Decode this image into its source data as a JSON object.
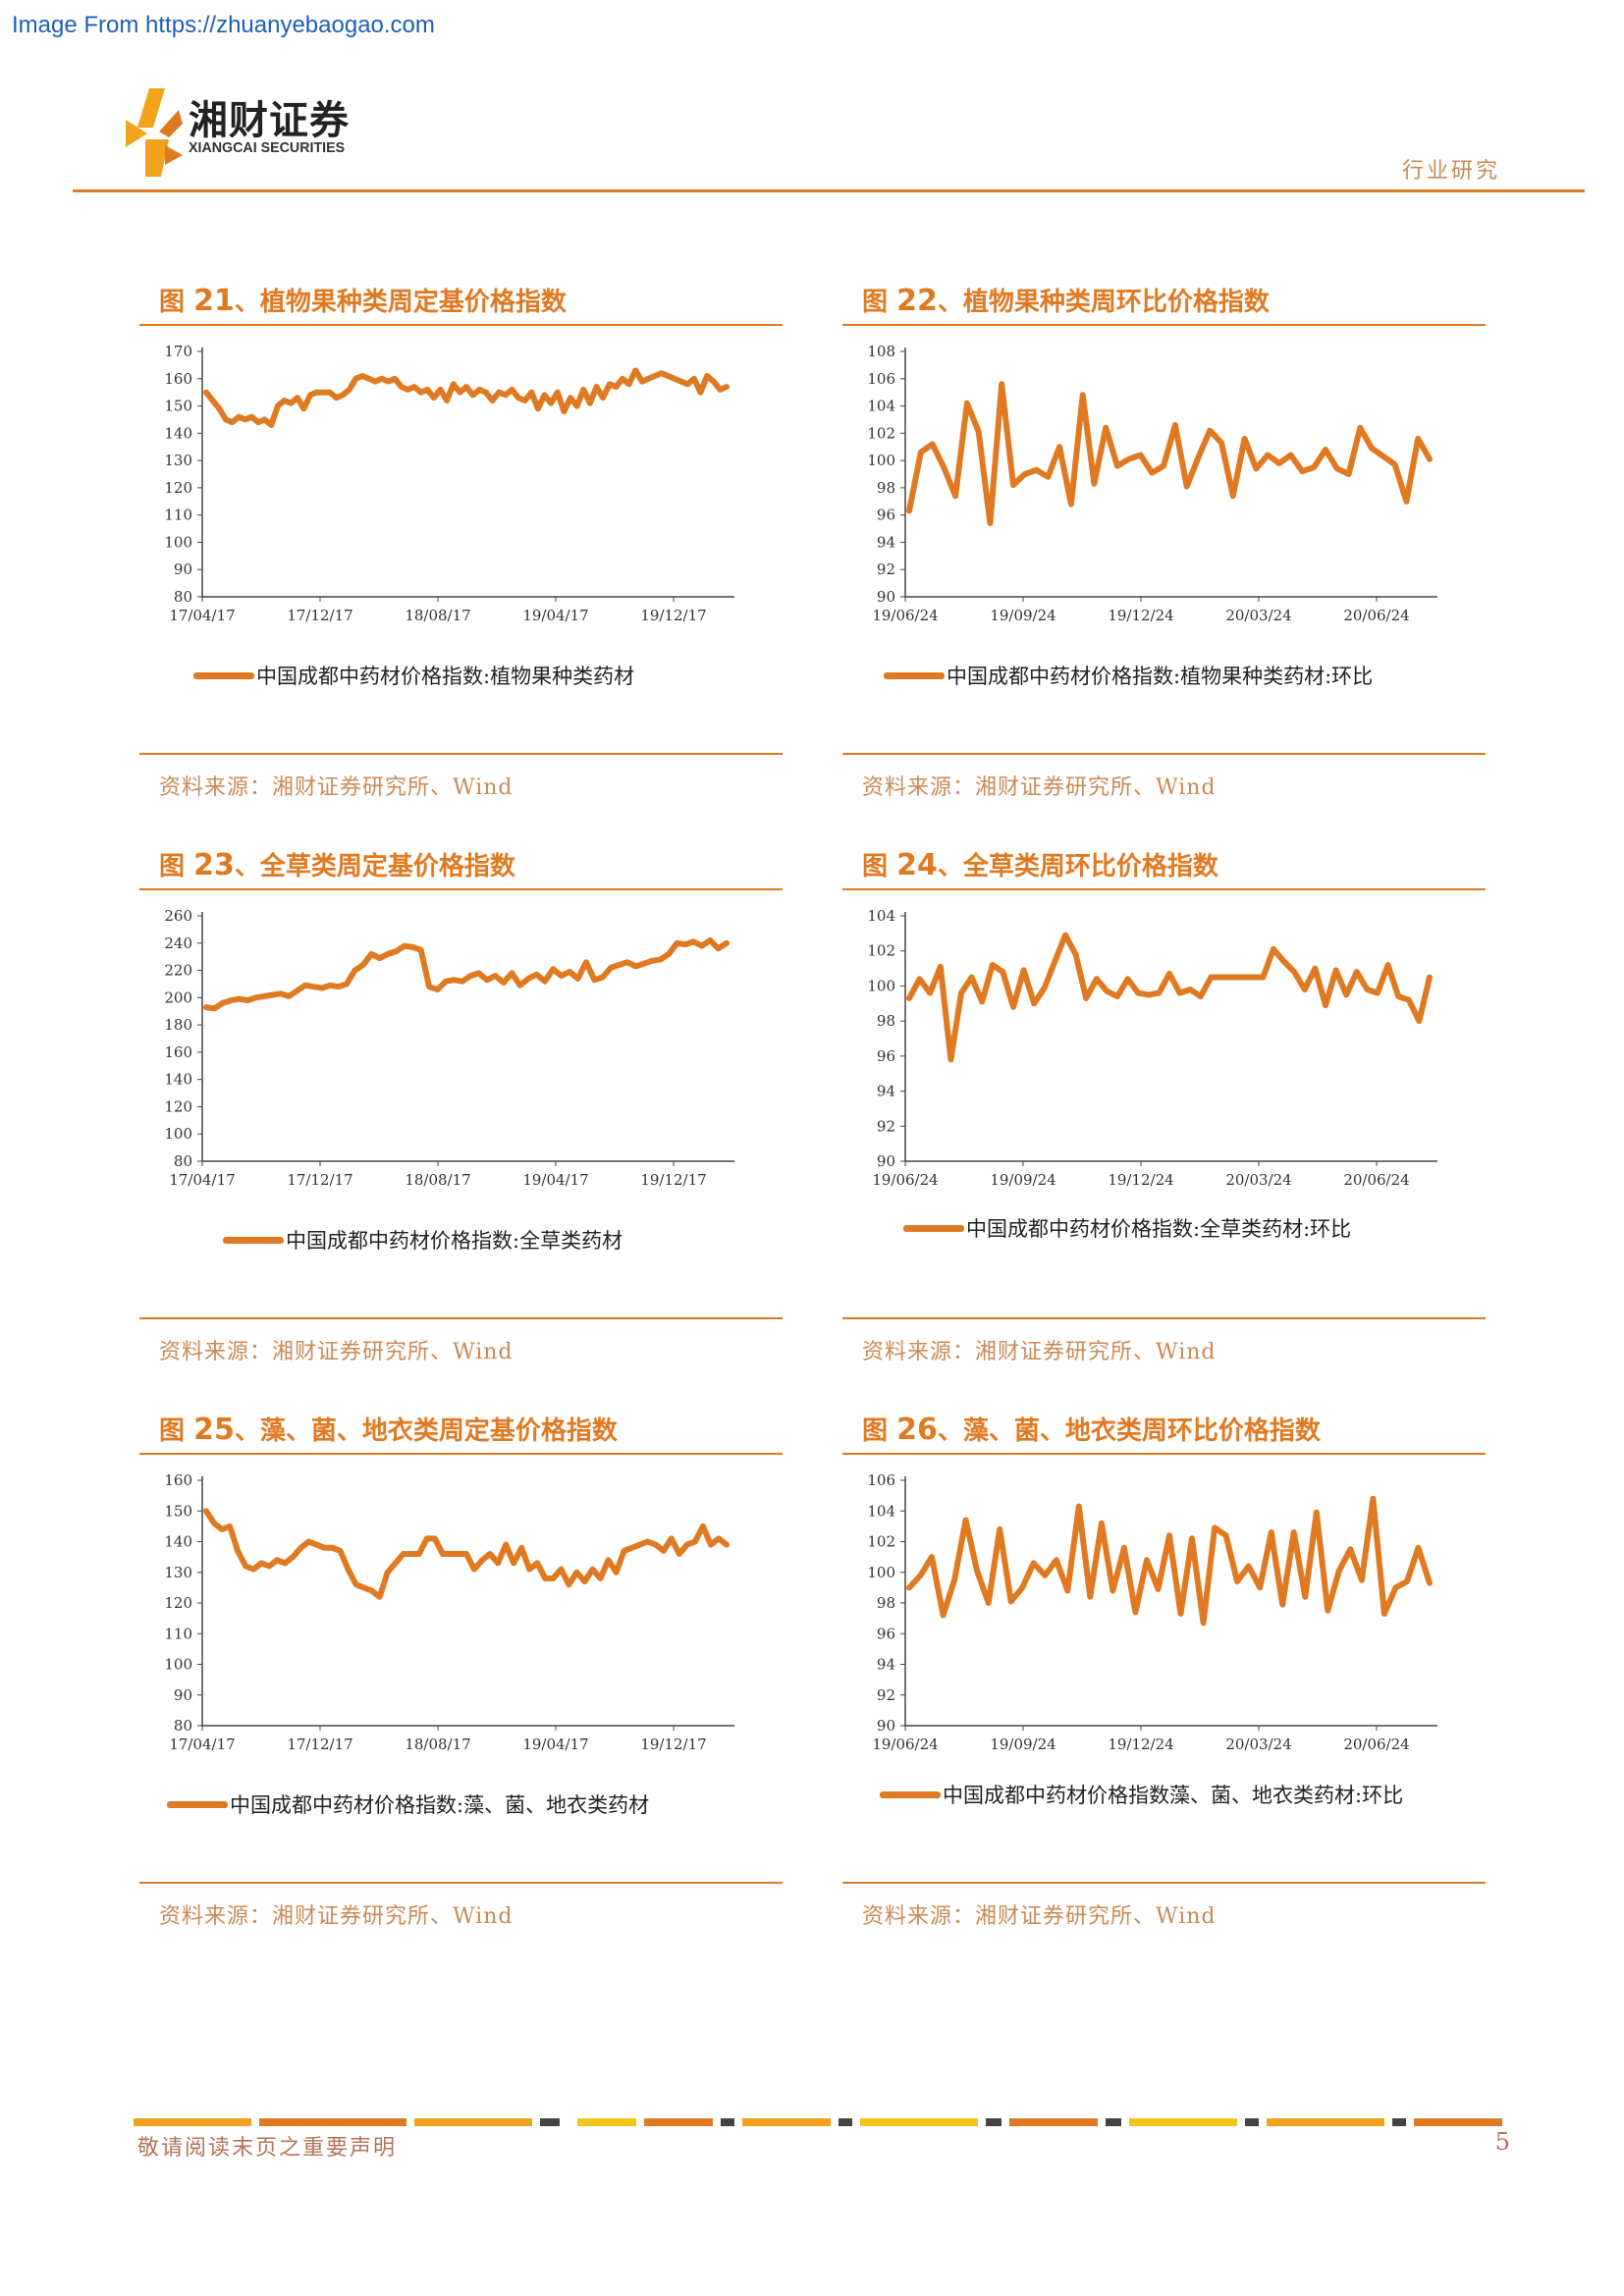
{
  "watermark": "Image From https://zhuanyebaogao.com",
  "header": {
    "brand_cn": "湘财证券",
    "brand_en": "XIANGCAI SECURITIES",
    "section": "行业研究"
  },
  "colors": {
    "accent": "#e07a22",
    "source_text": "#c98a55",
    "footer_text": "#b5735a",
    "watermark": "#1f5fb8"
  },
  "figures": [
    {
      "prefix": "图",
      "num": "21",
      "title": "、植物果种类周定基价格指数",
      "legend": "中国成都中药材价格指数:植物果种类药材",
      "source": "资料来源：湘财证券研究所、Wind"
    },
    {
      "prefix": "图",
      "num": "22",
      "title": "、植物果种类周环比价格指数",
      "legend": "中国成都中药材价格指数:植物果种类药材:环比",
      "source": "资料来源：湘财证券研究所、Wind"
    },
    {
      "prefix": "图",
      "num": "23",
      "title": "、全草类周定基价格指数",
      "legend": "中国成都中药材价格指数:全草类药材",
      "source": "资料来源：湘财证券研究所、Wind"
    },
    {
      "prefix": "图",
      "num": "24",
      "title": "、全草类周环比价格指数",
      "legend": "中国成都中药材价格指数:全草类药材:环比",
      "source": "资料来源：湘财证券研究所、Wind"
    },
    {
      "prefix": "图",
      "num": "25",
      "title": "、藻、菌、地衣类周定基价格指数",
      "legend": "中国成都中药材价格指数:藻、菌、地衣类药材",
      "source": "资料来源：湘财证券研究所、Wind"
    },
    {
      "prefix": "图",
      "num": "26",
      "title": "、藻、菌、地衣类周环比价格指数",
      "legend": "中国成都中药材价格指数藻、菌、地衣类药材:环比",
      "source": "资料来源：湘财证券研究所、Wind"
    }
  ],
  "chart_data": [
    {
      "type": "line",
      "xticks": [
        "17/04/17",
        "17/12/17",
        "18/08/17",
        "19/04/17",
        "19/12/17"
      ],
      "yticks": [
        80,
        90,
        100,
        110,
        120,
        130,
        140,
        150,
        160,
        170
      ],
      "ylim": [
        80,
        170
      ],
      "series": [
        {
          "name": "中国成都中药材价格指数:植物果种类药材",
          "values": [
            155,
            152,
            149,
            145,
            144,
            146,
            145,
            146,
            144,
            145,
            143,
            150,
            152,
            151,
            153,
            149,
            154,
            155,
            155,
            155,
            153,
            154,
            156,
            160,
            161,
            160,
            159,
            160,
            159,
            160,
            157,
            156,
            157,
            155,
            156,
            153,
            156,
            152,
            158,
            155,
            157,
            154,
            156,
            155,
            152,
            155,
            154,
            156,
            153,
            152,
            155,
            149,
            154,
            151,
            155,
            148,
            153,
            150,
            156,
            151,
            157,
            153,
            158,
            157,
            160,
            158,
            163,
            159,
            160,
            161,
            162,
            161,
            160,
            159,
            158,
            160,
            155,
            161,
            159,
            156,
            157
          ]
        }
      ]
    },
    {
      "type": "line",
      "xticks": [
        "19/06/24",
        "19/09/24",
        "19/12/24",
        "20/03/24",
        "20/06/24"
      ],
      "yticks": [
        90,
        92,
        94,
        96,
        98,
        100,
        102,
        104,
        106,
        108
      ],
      "ylim": [
        90,
        108
      ],
      "series": [
        {
          "name": "中国成都中药材价格指数:植物果种类药材:环比",
          "values": [
            96.3,
            100.6,
            101.2,
            99.5,
            97.4,
            104.2,
            102.1,
            95.4,
            105.6,
            98.2,
            99.0,
            99.3,
            98.8,
            101.0,
            96.8,
            104.8,
            98.3,
            102.4,
            99.6,
            100.1,
            100.4,
            99.1,
            99.6,
            102.6,
            98.1,
            100.2,
            102.2,
            101.3,
            97.4,
            101.6,
            99.4,
            100.4,
            99.8,
            100.4,
            99.2,
            99.5,
            100.8,
            99.4,
            99.0,
            102.4,
            100.9,
            100.3,
            99.7,
            97.0,
            101.6,
            100.1
          ]
        }
      ]
    },
    {
      "type": "line",
      "xticks": [
        "17/04/17",
        "17/12/17",
        "18/08/17",
        "19/04/17",
        "19/12/17"
      ],
      "yticks": [
        80,
        100,
        120,
        140,
        160,
        180,
        200,
        220,
        240,
        260
      ],
      "ylim": [
        80,
        260
      ],
      "series": [
        {
          "name": "中国成都中药材价格指数:全草类药材",
          "values": [
            193,
            192,
            196,
            198,
            199,
            198,
            200,
            201,
            202,
            203,
            201,
            205,
            209,
            208,
            207,
            209,
            208,
            210,
            220,
            224,
            232,
            229,
            232,
            234,
            238,
            237,
            235,
            208,
            206,
            212,
            213,
            212,
            216,
            218,
            213,
            216,
            211,
            218,
            209,
            214,
            217,
            212,
            221,
            216,
            219,
            214,
            226,
            213,
            215,
            222,
            224,
            226,
            223,
            225,
            227,
            228,
            232,
            240,
            239,
            241,
            238,
            242,
            236,
            240
          ]
        }
      ]
    },
    {
      "type": "line",
      "xticks": [
        "19/06/24",
        "19/09/24",
        "19/12/24",
        "20/03/24",
        "20/06/24"
      ],
      "yticks": [
        90,
        92,
        94,
        96,
        98,
        100,
        102,
        104
      ],
      "ylim": [
        90,
        104
      ],
      "series": [
        {
          "name": "中国成都中药材价格指数:全草类药材:环比",
          "values": [
            99.3,
            100.4,
            99.6,
            101.1,
            95.8,
            99.6,
            100.5,
            99.1,
            101.2,
            100.8,
            98.8,
            100.9,
            99.0,
            99.9,
            101.4,
            102.9,
            101.8,
            99.3,
            100.4,
            99.7,
            99.4,
            100.4,
            99.6,
            99.5,
            99.6,
            100.7,
            99.6,
            99.8,
            99.4,
            100.5,
            100.5,
            100.5,
            100.5,
            100.5,
            100.5,
            102.1,
            101.4,
            100.8,
            99.8,
            101.0,
            98.9,
            100.9,
            99.5,
            100.8,
            99.8,
            99.6,
            101.2,
            99.4,
            99.2,
            98.0,
            100.5
          ]
        }
      ]
    },
    {
      "type": "line",
      "xticks": [
        "17/04/17",
        "17/12/17",
        "18/08/17",
        "19/04/17",
        "19/12/17"
      ],
      "yticks": [
        80,
        90,
        100,
        110,
        120,
        130,
        140,
        150,
        160
      ],
      "ylim": [
        80,
        160
      ],
      "series": [
        {
          "name": "中国成都中药材价格指数:藻、菌、地衣类药材",
          "values": [
            150,
            146,
            144,
            145,
            137,
            132,
            131,
            133,
            132,
            134,
            133,
            135,
            138,
            140,
            139,
            138,
            138,
            137,
            131,
            126,
            125,
            124,
            122,
            130,
            133,
            136,
            136,
            136,
            141,
            141,
            136,
            136,
            136,
            136,
            131,
            134,
            136,
            133,
            139,
            133,
            138,
            131,
            133,
            128,
            128,
            131,
            126,
            130,
            127,
            131,
            128,
            134,
            130,
            137,
            138,
            139,
            140,
            139,
            137,
            141,
            136,
            139,
            140,
            145,
            139,
            141,
            139
          ]
        }
      ]
    },
    {
      "type": "line",
      "xticks": [
        "19/06/24",
        "19/09/24",
        "19/12/24",
        "20/03/24",
        "20/06/24"
      ],
      "yticks": [
        90,
        92,
        94,
        96,
        98,
        100,
        102,
        104,
        106
      ],
      "ylim": [
        90,
        106
      ],
      "series": [
        {
          "name": "中国成都中药材价格指数藻、菌、地衣类药材:环比",
          "values": [
            99.0,
            99.8,
            101.0,
            97.2,
            99.5,
            103.4,
            100.1,
            98.0,
            102.8,
            98.1,
            99.0,
            100.6,
            99.8,
            100.8,
            98.8,
            104.3,
            98.4,
            103.2,
            98.8,
            101.6,
            97.4,
            100.8,
            98.9,
            102.4,
            97.3,
            102.2,
            96.7,
            102.9,
            102.4,
            99.4,
            100.4,
            99.0,
            102.6,
            97.9,
            102.6,
            98.4,
            103.9,
            97.5,
            100.1,
            101.5,
            99.5,
            104.8,
            97.3,
            99.0,
            99.4,
            101.6,
            99.3
          ]
        }
      ]
    }
  ],
  "footer": {
    "disclaimer": "敬请阅读末页之重要声明",
    "page_number": "5"
  }
}
